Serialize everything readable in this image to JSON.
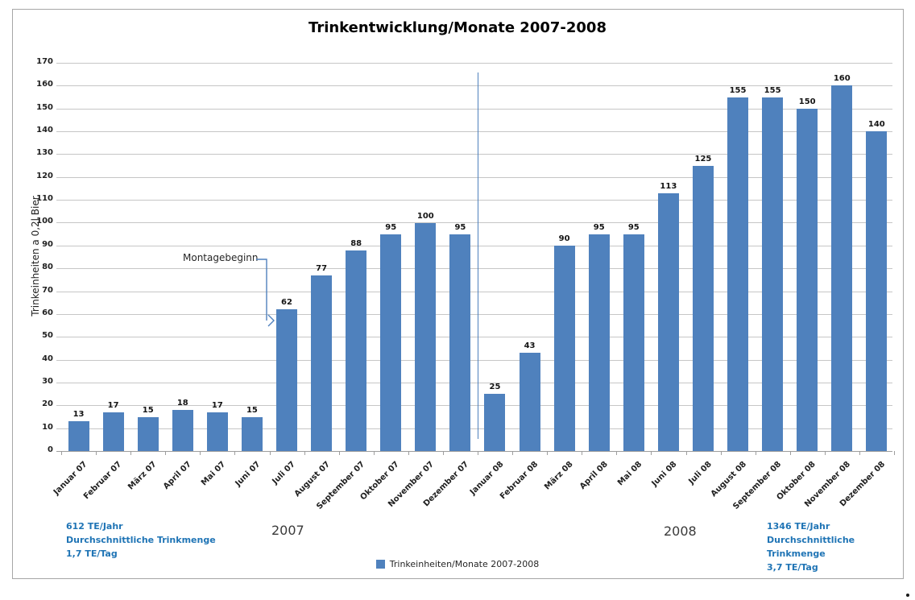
{
  "page": {
    "title": "Trinkentwicklung/Monate 2007-2008"
  },
  "chart_data": {
    "type": "bar",
    "title": "Trinkentwicklung/Monate 2007-2008",
    "xlabel": "",
    "ylabel": "Trinkeinheiten a 0,2l Bier",
    "ylim": [
      0,
      170
    ],
    "ytick_step": 10,
    "grid": true,
    "legend": {
      "position": "bottom",
      "label": "Trinkeinheiten/Monate 2007-2008"
    },
    "categories": [
      "Januar 07",
      "Februar 07",
      "März 07",
      "April 07",
      "Mai 07",
      "Juni 07",
      "Juli 07",
      "August 07",
      "September 07",
      "Oktober 07",
      "November 07",
      "Dezember 07",
      "Januar 08",
      "Februar 08",
      "März 08",
      "April 08",
      "Mai 08",
      "Juni 08",
      "Juli 08",
      "August 08",
      "September 08",
      "Oktober 08",
      "November 08",
      "Dezember 08"
    ],
    "values": [
      13,
      17,
      15,
      18,
      17,
      15,
      62,
      77,
      88,
      95,
      100,
      95,
      25,
      43,
      90,
      95,
      95,
      113,
      125,
      155,
      155,
      150,
      160,
      140
    ],
    "annotations": [
      {
        "type": "callout",
        "text": "Montagebeginn",
        "target_category": "Juli 07"
      },
      {
        "type": "vline",
        "between": [
          "Dezember 07",
          "Januar 08"
        ]
      }
    ]
  },
  "annotations": {
    "montagebeginn_label": "Montagebeginn",
    "year_2007": "2007",
    "year_2008": "2008",
    "stats_2007": {
      "line1": "612 TE/Jahr",
      "line2": "Durchschnittliche Trinkmenge",
      "line3": "1,7 TE/Tag"
    },
    "stats_2008": {
      "line1": "1346 TE/Jahr",
      "line2": "Durchschnittliche Trinkmenge",
      "line3": "3,7 TE/Tag"
    }
  },
  "colors": {
    "bar": "#4F81BD",
    "divider_line": "#4F81BD",
    "callout_arrow": "#4F81BD",
    "blue_text": "#1F74B5",
    "gridline": "#C6C6C6",
    "axis_line": "#9D9D9D",
    "frame_border": "#A6A6A6"
  }
}
